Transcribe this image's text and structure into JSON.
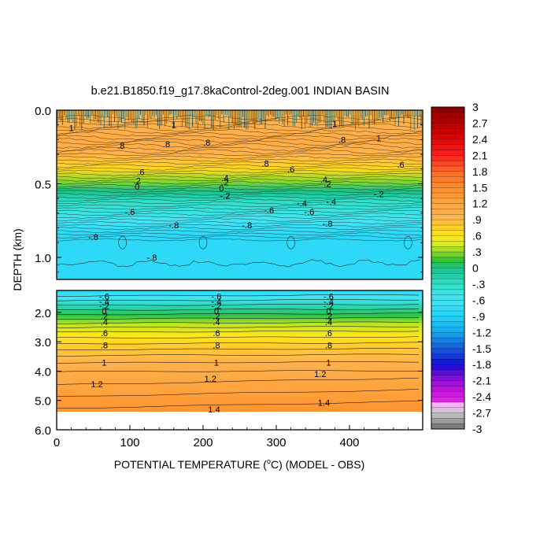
{
  "chart_data": {
    "type": "heatmap",
    "title": "b.e21.B1850.f19_g17.8kaControl-2deg.001 INDIAN BASIN",
    "xlabel_prefix": "POTENTIAL TEMPERATURE (",
    "xlabel_unit": "C",
    "xlabel_suffix": ") (MODEL - OBS)",
    "ylabel": "DEPTH (km)",
    "xlim": [
      0,
      500
    ],
    "x_ticks": [
      0,
      100,
      200,
      300,
      400
    ],
    "upper_panel": {
      "ylim": [
        0.0,
        1.15
      ],
      "y_ticks": [
        "0.0",
        "0.5",
        "1.0"
      ],
      "y_tick_values": [
        0.0,
        0.5,
        1.0
      ],
      "profile": [
        {
          "depth": 0.0,
          "value": 0.9
        },
        {
          "depth": 0.08,
          "value": 1.0
        },
        {
          "depth": 0.2,
          "value": 1.1
        },
        {
          "depth": 0.3,
          "value": 1.0
        },
        {
          "depth": 0.4,
          "value": 0.7
        },
        {
          "depth": 0.48,
          "value": 0.3
        },
        {
          "depth": 0.55,
          "value": 0.0
        },
        {
          "depth": 0.62,
          "value": -0.3
        },
        {
          "depth": 0.75,
          "value": -0.6
        },
        {
          "depth": 0.85,
          "value": -0.8
        },
        {
          "depth": 1.15,
          "value": -0.8
        }
      ],
      "contour_labels": [
        {
          "text": "1",
          "x": 20,
          "d": 0.12
        },
        {
          "text": "1",
          "x": 160,
          "d": 0.1
        },
        {
          "text": "1",
          "x": 380,
          "d": 0.09
        },
        {
          "text": "1",
          "x": 440,
          "d": 0.19
        },
        {
          "text": ".8",
          "x": 88,
          "d": 0.24
        },
        {
          "text": ".8",
          "x": 150,
          "d": 0.23
        },
        {
          "text": ".8",
          "x": 205,
          "d": 0.22
        },
        {
          "text": ".8",
          "x": 285,
          "d": 0.36
        },
        {
          "text": ".8",
          "x": 390,
          "d": 0.2
        },
        {
          "text": ".6",
          "x": 115,
          "d": 0.42
        },
        {
          "text": ".6",
          "x": 320,
          "d": 0.4
        },
        {
          "text": ".6",
          "x": 470,
          "d": 0.37
        },
        {
          "text": ".4",
          "x": 230,
          "d": 0.46
        },
        {
          "text": ".4",
          "x": 365,
          "d": 0.47
        },
        {
          "text": ".2",
          "x": 110,
          "d": 0.48
        },
        {
          "text": ".2",
          "x": 230,
          "d": 0.49
        },
        {
          "text": ".2",
          "x": 370,
          "d": 0.5
        },
        {
          "text": "0",
          "x": 110,
          "d": 0.52
        },
        {
          "text": "0",
          "x": 225,
          "d": 0.53
        },
        {
          "text": "-.2",
          "x": 230,
          "d": 0.58
        },
        {
          "text": "-.2",
          "x": 440,
          "d": 0.57
        },
        {
          "text": "-.4",
          "x": 335,
          "d": 0.63
        },
        {
          "text": "-.4",
          "x": 375,
          "d": 0.62
        },
        {
          "text": "-.6",
          "x": 100,
          "d": 0.69
        },
        {
          "text": "-.6",
          "x": 290,
          "d": 0.68
        },
        {
          "text": "-.6",
          "x": 345,
          "d": 0.69
        },
        {
          "text": "-.8",
          "x": 160,
          "d": 0.78
        },
        {
          "text": "-.8",
          "x": 260,
          "d": 0.78
        },
        {
          "text": "-.8",
          "x": 370,
          "d": 0.77
        },
        {
          "text": "-.8",
          "x": 50,
          "d": 0.86
        },
        {
          "text": "-.8",
          "x": 130,
          "d": 1.0
        }
      ]
    },
    "lower_panel": {
      "ylim": [
        1.25,
        6.0
      ],
      "y_ticks": [
        "2.0",
        "3.0",
        "4.0",
        "5.0",
        "6.0"
      ],
      "y_tick_values": [
        2.0,
        3.0,
        4.0,
        5.0,
        6.0
      ],
      "data_bottom_depth": 5.35,
      "profile": [
        {
          "depth": 1.25,
          "value": -0.8
        },
        {
          "depth": 1.5,
          "value": -0.6
        },
        {
          "depth": 1.8,
          "value": -0.2
        },
        {
          "depth": 2.1,
          "value": 0.1
        },
        {
          "depth": 2.4,
          "value": 0.4
        },
        {
          "depth": 2.8,
          "value": 0.6
        },
        {
          "depth": 3.2,
          "value": 0.8
        },
        {
          "depth": 3.7,
          "value": 1.0
        },
        {
          "depth": 4.5,
          "value": 1.2
        },
        {
          "depth": 5.35,
          "value": 1.4
        }
      ],
      "contour_labels_at_x": [
        65,
        215,
        365
      ],
      "contour_labels": [
        {
          "text": "-.6",
          "d": 1.45
        },
        {
          "text": "-.4",
          "d": 1.62
        },
        {
          "text": "-.2",
          "d": 1.78
        },
        {
          "text": "0",
          "d": 1.95
        },
        {
          "text": ".2",
          "d": 2.12
        },
        {
          "text": ".4",
          "d": 2.32
        },
        {
          "text": ".6",
          "d": 2.7
        },
        {
          "text": ".8",
          "d": 3.12
        },
        {
          "text": "1",
          "d": 3.7
        }
      ],
      "extra_labels": [
        {
          "text": "1.2",
          "x": 55,
          "d": 4.45
        },
        {
          "text": "1.2",
          "x": 210,
          "d": 4.25
        },
        {
          "text": "1.2",
          "x": 360,
          "d": 4.1
        },
        {
          "text": "1.4",
          "x": 215,
          "d": 5.3
        },
        {
          "text": "1.4",
          "x": 365,
          "d": 5.08
        }
      ]
    },
    "colorbar": {
      "labels": [
        "3",
        "2.7",
        "2.4",
        "2.1",
        "1.8",
        "1.5",
        "1.2",
        ".9",
        ".6",
        ".3",
        "0",
        "-.3",
        "-.6",
        "-.9",
        "-1.2",
        "-1.5",
        "-1.8",
        "-2.1",
        "-2.4",
        "-2.7",
        "-3"
      ],
      "label_values": [
        3,
        2.7,
        2.4,
        2.1,
        1.8,
        1.5,
        1.2,
        0.9,
        0.6,
        0.3,
        0,
        -0.3,
        -0.6,
        -0.9,
        -1.2,
        -1.5,
        -1.8,
        -2.1,
        -2.4,
        -2.7,
        -3
      ],
      "range": [
        -3,
        3
      ],
      "color_stops": [
        {
          "v": 3.0,
          "c": "#8b0000"
        },
        {
          "v": 2.5,
          "c": "#d40000"
        },
        {
          "v": 2.1,
          "c": "#ff2020"
        },
        {
          "v": 1.8,
          "c": "#ff6a2a"
        },
        {
          "v": 1.5,
          "c": "#ff8c2a"
        },
        {
          "v": 1.2,
          "c": "#ffa640"
        },
        {
          "v": 0.9,
          "c": "#ffb852"
        },
        {
          "v": 0.75,
          "c": "#ffd21e"
        },
        {
          "v": 0.6,
          "c": "#ffe61a"
        },
        {
          "v": 0.45,
          "c": "#d8ec1e"
        },
        {
          "v": 0.3,
          "c": "#8ed82a"
        },
        {
          "v": 0.15,
          "c": "#35c42e"
        },
        {
          "v": 0.0,
          "c": "#18c08a"
        },
        {
          "v": -0.3,
          "c": "#30e0c8"
        },
        {
          "v": -0.6,
          "c": "#46e4f4"
        },
        {
          "v": -0.9,
          "c": "#20d4f8"
        },
        {
          "v": -1.2,
          "c": "#10a8ee"
        },
        {
          "v": -1.5,
          "c": "#1a5ad8"
        },
        {
          "v": -1.8,
          "c": "#1010d8"
        },
        {
          "v": -2.0,
          "c": "#7010d8"
        },
        {
          "v": -2.2,
          "c": "#b010d8"
        },
        {
          "v": -2.45,
          "c": "#e020e8"
        },
        {
          "v": -2.55,
          "c": "#f8b0f8"
        },
        {
          "v": -2.7,
          "c": "#c8c8c8"
        },
        {
          "v": -3.0,
          "c": "#6e6e6e"
        }
      ]
    }
  }
}
